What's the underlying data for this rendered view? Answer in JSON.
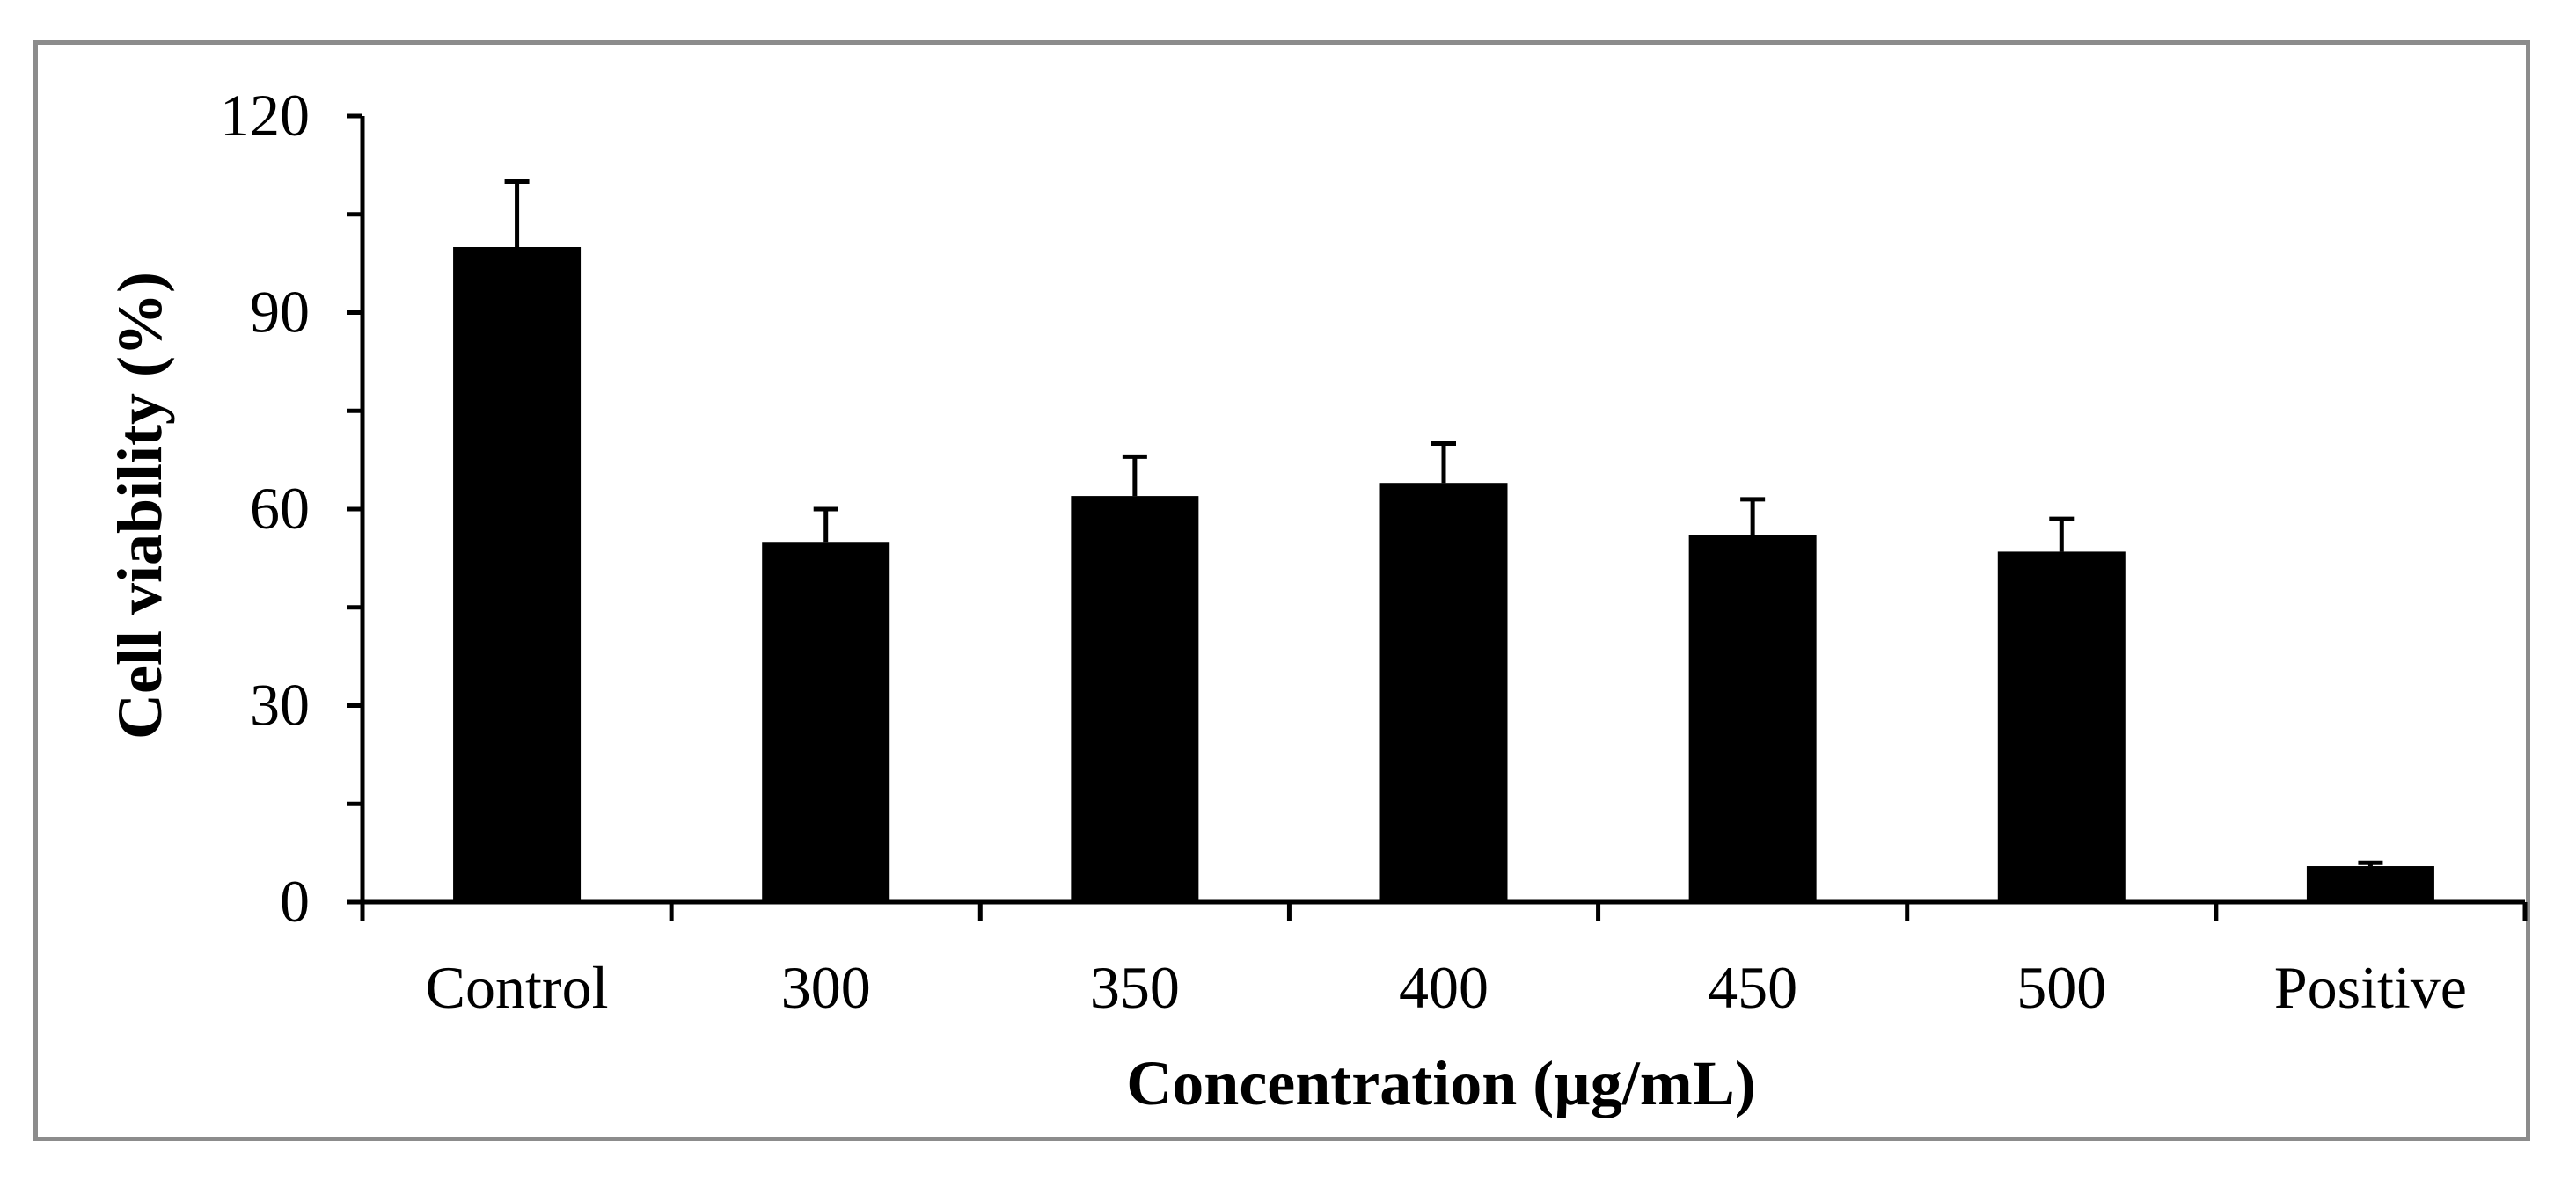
{
  "chart_data": {
    "type": "bar",
    "title": "",
    "xlabel": "Concentration (µg/mL)",
    "ylabel": "Cell viability (%)",
    "ylim": [
      0,
      120
    ],
    "yticks": [
      0,
      30,
      60,
      90,
      120
    ],
    "categories": [
      "Control",
      "300",
      "350",
      "400",
      "450",
      "500",
      "Positive"
    ],
    "series": [
      {
        "name": "Cell viability",
        "values": [
          100,
          55,
          62,
          64,
          56,
          53.5,
          5.5
        ],
        "errors": [
          10,
          5,
          6,
          6,
          5.5,
          5,
          0.5
        ],
        "color": "#000000"
      }
    ],
    "grid": false,
    "legend": "none"
  }
}
